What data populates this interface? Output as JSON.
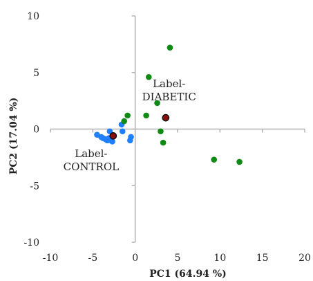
{
  "chart_data": {
    "type": "scatter",
    "title": "",
    "xlabel": "PC1 (64.94 %)",
    "ylabel": "PC2 (17.04 %)",
    "xlim": [
      -10,
      20
    ],
    "ylim": [
      -10,
      10
    ],
    "xticks": [
      -10,
      -5,
      0,
      5,
      10,
      15,
      20
    ],
    "yticks": [
      -10,
      -5,
      0,
      5,
      10
    ],
    "x_tick_labels": [
      "-10",
      "-5",
      "0",
      "5",
      "10",
      "15",
      "20"
    ],
    "y_tick_labels": [
      "-10",
      "-5",
      "0",
      "5",
      "10"
    ],
    "grid": false,
    "legend": false,
    "annotations": [
      {
        "lines": [
          "Label-",
          "DIABETIC"
        ],
        "x": 4.0,
        "y": 1.0
      },
      {
        "lines": [
          "Label-",
          "CONTROL"
        ],
        "x": -3.0,
        "y": -1.0
      }
    ],
    "series": [
      {
        "color": "#1f7fff",
        "points": [
          [
            -4.5,
            -0.5
          ],
          [
            -4.0,
            -0.7
          ],
          [
            -3.8,
            -0.8
          ],
          [
            -3.5,
            -0.9
          ],
          [
            -3.3,
            -1.0
          ],
          [
            -3.1,
            -0.8
          ],
          [
            -2.9,
            -1.0
          ],
          [
            -2.7,
            -1.1
          ],
          [
            -3.0,
            -0.2
          ],
          [
            -1.6,
            0.4
          ],
          [
            -1.5,
            -0.2
          ],
          [
            -0.6,
            -1.0
          ],
          [
            -0.5,
            -0.7
          ]
        ]
      },
      {
        "color": "#0f8a14",
        "points": [
          [
            4.1,
            7.2
          ],
          [
            1.6,
            4.6
          ],
          [
            2.6,
            2.3
          ],
          [
            -0.9,
            1.2
          ],
          [
            -1.3,
            0.7
          ],
          [
            1.3,
            1.2
          ],
          [
            3.0,
            -0.2
          ],
          [
            3.3,
            -1.2
          ],
          [
            9.3,
            -2.7
          ],
          [
            12.3,
            -2.9
          ]
        ]
      },
      {
        "color": "#8a1010",
        "stroke": "#111111",
        "points": [
          [
            -2.6,
            -0.6
          ],
          [
            3.6,
            1.0
          ]
        ]
      }
    ]
  }
}
